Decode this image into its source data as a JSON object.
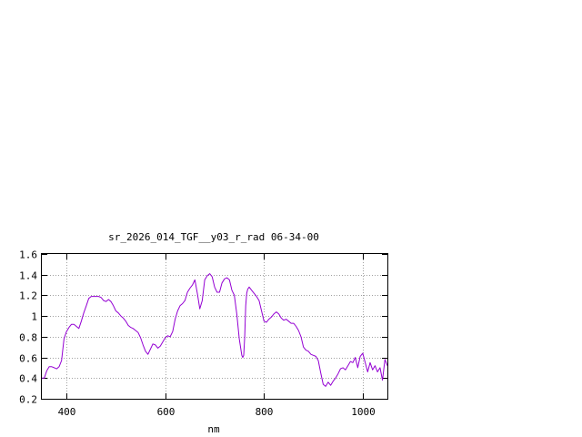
{
  "chart_data": {
    "type": "line",
    "title": "sr_2026_014_TGF__y03_r_rad 06-34-00",
    "xlabel": "nm",
    "ylabel": "",
    "xlim": [
      350,
      1050
    ],
    "ylim": [
      0.2,
      1.6
    ],
    "xticks": [
      400,
      600,
      800,
      1000
    ],
    "xtick_labels": [
      "400",
      "600",
      "800",
      "1000"
    ],
    "yticks": [
      0.2,
      0.4,
      0.6,
      0.8,
      1.0,
      1.2,
      1.4,
      1.6
    ],
    "ytick_labels": [
      "0.2",
      "0.4",
      "0.6",
      "0.8",
      "1",
      "1.2",
      "1.4",
      "1.6"
    ],
    "grid": true,
    "legend": "none",
    "colors": {
      "series": "#9400d3",
      "grid": "#a0a0a0",
      "axes": "#000000"
    },
    "series": [
      {
        "x": [
          350,
          355,
          360,
          365,
          370,
          375,
          380,
          385,
          390,
          395,
          400,
          405,
          410,
          415,
          420,
          425,
          430,
          435,
          440,
          445,
          450,
          455,
          460,
          465,
          470,
          475,
          480,
          485,
          490,
          495,
          500,
          505,
          510,
          515,
          520,
          525,
          530,
          535,
          540,
          545,
          550,
          555,
          560,
          565,
          570,
          575,
          580,
          585,
          590,
          595,
          600,
          605,
          610,
          615,
          620,
          625,
          630,
          635,
          640,
          645,
          650,
          655,
          660,
          665,
          670,
          675,
          680,
          685,
          690,
          695,
          700,
          705,
          710,
          715,
          720,
          725,
          730,
          735,
          740,
          745,
          750,
          755,
          757,
          759,
          761,
          763,
          765,
          767,
          770,
          775,
          780,
          785,
          790,
          795,
          800,
          805,
          810,
          815,
          820,
          825,
          830,
          835,
          840,
          845,
          850,
          855,
          860,
          865,
          870,
          875,
          880,
          885,
          890,
          895,
          900,
          905,
          910,
          915,
          920,
          925,
          930,
          935,
          940,
          945,
          950,
          955,
          960,
          965,
          970,
          975,
          980,
          985,
          990,
          995,
          1000,
          1005,
          1010,
          1015,
          1020,
          1025,
          1030,
          1035,
          1040,
          1045,
          1050
        ],
        "y": [
          0.4,
          0.4,
          0.47,
          0.51,
          0.51,
          0.5,
          0.49,
          0.51,
          0.57,
          0.78,
          0.85,
          0.89,
          0.92,
          0.92,
          0.9,
          0.88,
          0.95,
          1.03,
          1.1,
          1.17,
          1.19,
          1.19,
          1.19,
          1.19,
          1.18,
          1.15,
          1.14,
          1.16,
          1.14,
          1.1,
          1.05,
          1.03,
          1.0,
          0.98,
          0.95,
          0.91,
          0.89,
          0.88,
          0.86,
          0.84,
          0.79,
          0.72,
          0.66,
          0.63,
          0.68,
          0.73,
          0.72,
          0.69,
          0.71,
          0.75,
          0.79,
          0.81,
          0.8,
          0.85,
          0.97,
          1.05,
          1.1,
          1.12,
          1.15,
          1.23,
          1.27,
          1.3,
          1.35,
          1.22,
          1.07,
          1.15,
          1.35,
          1.39,
          1.41,
          1.38,
          1.28,
          1.23,
          1.23,
          1.32,
          1.36,
          1.37,
          1.35,
          1.25,
          1.2,
          1.02,
          0.78,
          0.62,
          0.6,
          0.62,
          0.8,
          1.1,
          1.22,
          1.26,
          1.28,
          1.25,
          1.22,
          1.19,
          1.15,
          1.05,
          0.95,
          0.94,
          0.97,
          0.99,
          1.02,
          1.04,
          1.02,
          0.98,
          0.96,
          0.97,
          0.95,
          0.93,
          0.93,
          0.9,
          0.86,
          0.8,
          0.7,
          0.67,
          0.66,
          0.63,
          0.62,
          0.61,
          0.57,
          0.45,
          0.34,
          0.32,
          0.36,
          0.33,
          0.37,
          0.4,
          0.44,
          0.49,
          0.5,
          0.48,
          0.52,
          0.56,
          0.55,
          0.6,
          0.5,
          0.61,
          0.64,
          0.55,
          0.46,
          0.55,
          0.48,
          0.52,
          0.46,
          0.5,
          0.38,
          0.58,
          0.52
        ]
      }
    ]
  }
}
